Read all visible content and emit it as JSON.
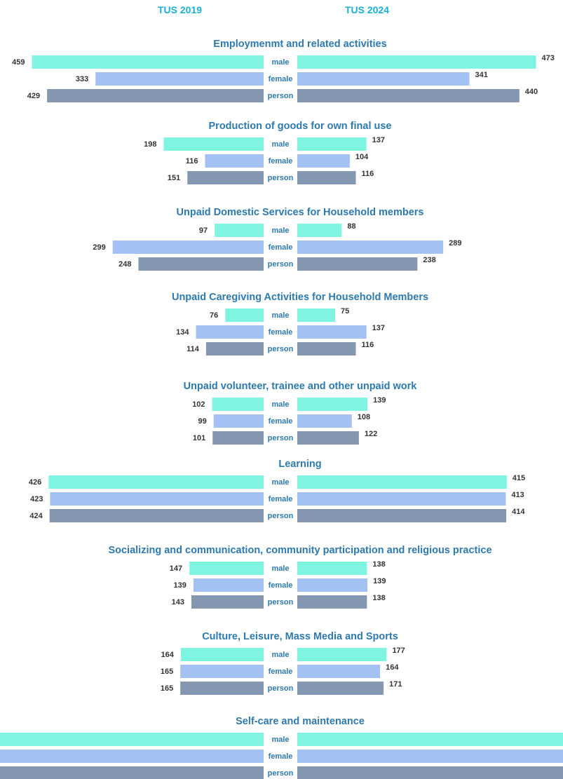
{
  "headers": {
    "left": "TUS 2019",
    "right": "TUS 2024"
  },
  "colors": {
    "male": "#7ff5e1",
    "female": "#a3c1f2",
    "person": "#8496b0",
    "title": "#2e79ad",
    "gender_label": "#2e79ad",
    "value_label": "#333333",
    "header": "#1ab0d6"
  },
  "chart_data": {
    "type": "bar",
    "orientation": "horizontal-butterfly",
    "legend": "none",
    "categories": [
      "male",
      "female",
      "person"
    ],
    "series": [
      {
        "name": "TUS 2019"
      },
      {
        "name": "TUS 2024"
      }
    ],
    "panels": [
      {
        "title": "Employmenmt and related activities",
        "tus2019": [
          459,
          333,
          429
        ],
        "tus2024": [
          473,
          341,
          440
        ]
      },
      {
        "title": "Production of goods for own final use",
        "tus2019": [
          198,
          116,
          151
        ],
        "tus2024": [
          137,
          104,
          116
        ]
      },
      {
        "title": "Unpaid Domestic Services for Household members",
        "tus2019": [
          97,
          299,
          248
        ],
        "tus2024": [
          88,
          289,
          238
        ]
      },
      {
        "title": "Unpaid Caregiving Activities for Household Members",
        "tus2019": [
          76,
          134,
          114
        ],
        "tus2024": [
          75,
          137,
          116
        ]
      },
      {
        "title": "Unpaid volunteer, trainee and other unpaid work",
        "tus2019": [
          102,
          99,
          101
        ],
        "tus2024": [
          139,
          108,
          122
        ]
      },
      {
        "title": "Learning",
        "tus2019": [
          426,
          423,
          424
        ],
        "tus2024": [
          415,
          413,
          414
        ]
      },
      {
        "title": "Socializing and communication, community participation and religious practice",
        "tus2019": [
          147,
          139,
          143
        ],
        "tus2024": [
          138,
          139,
          138
        ]
      },
      {
        "title": "Culture, Leisure, Mass Media and Sports",
        "tus2019": [
          164,
          165,
          165
        ],
        "tus2024": [
          177,
          164,
          171
        ]
      },
      {
        "title": "Self-care and maintenance",
        "tus2019": [
          null,
          null,
          null
        ],
        "tus2024": [
          null,
          null,
          null
        ]
      }
    ]
  }
}
